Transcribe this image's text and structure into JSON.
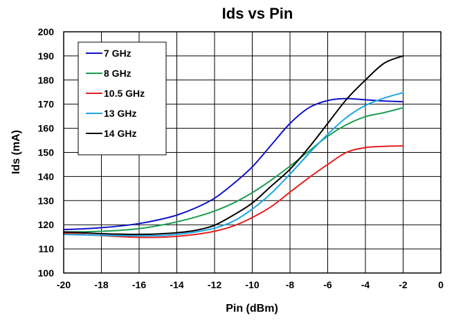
{
  "chart_data": {
    "type": "line",
    "title": "Ids vs Pin",
    "xlabel": "Pin (dBm)",
    "ylabel": "Ids (mA)",
    "xlim": [
      -20,
      0
    ],
    "ylim": [
      100,
      200
    ],
    "x_ticks": [
      -20,
      -18,
      -16,
      -14,
      -12,
      -10,
      -8,
      -6,
      -4,
      -2,
      0
    ],
    "y_ticks": [
      100,
      110,
      120,
      130,
      140,
      150,
      160,
      170,
      180,
      190,
      200
    ],
    "grid": true,
    "legend_position": "top-left",
    "x": [
      -20,
      -19,
      -18,
      -17,
      -16,
      -15,
      -14,
      -13,
      -12,
      -11,
      -10,
      -9,
      -8,
      -7,
      -6,
      -5,
      -4,
      -3,
      -2
    ],
    "series": [
      {
        "name": "7 GHz",
        "color": "#1010c8",
        "values": [
          118,
          118.3,
          118.8,
          119.5,
          120.5,
          122,
          124,
          127,
          131,
          137,
          144,
          153,
          162,
          168.5,
          171.5,
          172.3,
          171.8,
          171.3,
          171
        ]
      },
      {
        "name": "8 GHz",
        "color": "#1a9e50",
        "values": [
          117,
          117.1,
          117.3,
          117.7,
          118.4,
          119.6,
          121.2,
          123.2,
          125.7,
          129,
          133.3,
          138.5,
          144.3,
          150.5,
          156.7,
          161.5,
          164.8,
          166.5,
          168.5
        ]
      },
      {
        "name": "10.5 GHz",
        "color": "#e61e1e",
        "values": [
          116.5,
          116,
          115.5,
          115.1,
          114.8,
          114.8,
          115.2,
          116,
          117.3,
          119.5,
          123,
          127.5,
          133.5,
          139.5,
          145,
          150,
          152,
          152.5,
          152.7
        ]
      },
      {
        "name": "13 GHz",
        "color": "#1aa6e6",
        "values": [
          116,
          115.8,
          115.6,
          115.5,
          115.4,
          115.5,
          116,
          117,
          118.6,
          121.5,
          126.5,
          133,
          141,
          149.5,
          157.5,
          164.5,
          169.5,
          172.5,
          174.8
        ]
      },
      {
        "name": "14 GHz",
        "color": "#000000",
        "values": [
          117,
          116.7,
          116.3,
          116.1,
          116,
          116.2,
          116.7,
          117.7,
          119.8,
          124,
          129,
          136,
          143,
          152,
          162,
          172,
          180,
          187,
          190
        ]
      }
    ]
  }
}
